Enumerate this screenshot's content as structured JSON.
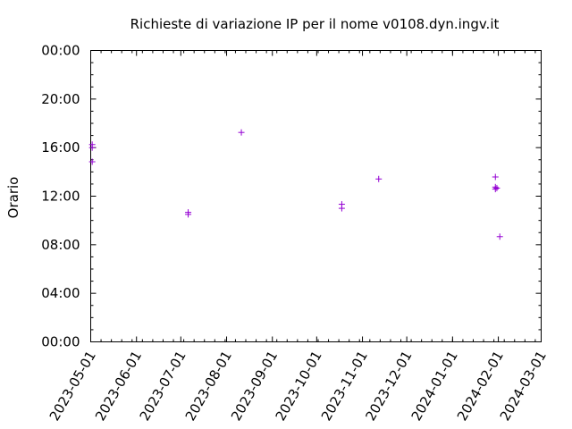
{
  "chart_data": {
    "type": "scatter",
    "title": "Richieste di variazione IP per il nome v0108.dyn.ingv.it",
    "xlabel": "",
    "ylabel": "Orario",
    "x_axis": {
      "type": "date",
      "range": [
        "2023-05-01",
        "2024-03-01"
      ],
      "ticks": [
        "2023-05-01",
        "2023-06-01",
        "2023-07-01",
        "2023-08-01",
        "2023-09-01",
        "2023-10-01",
        "2023-11-01",
        "2023-12-01",
        "2024-01-01",
        "2024-02-01",
        "2024-03-01"
      ]
    },
    "y_axis": {
      "type": "time",
      "range": [
        "00:00",
        "24:00"
      ],
      "ticks": [
        "00:00",
        "04:00",
        "08:00",
        "12:00",
        "16:00",
        "20:00",
        "00:00"
      ]
    },
    "grid": false,
    "marker": "+",
    "marker_color": "#9400d3",
    "points": [
      {
        "x": "2023-05-02",
        "y": "16:15"
      },
      {
        "x": "2023-05-02",
        "y": "16:00"
      },
      {
        "x": "2023-05-02",
        "y": "14:50"
      },
      {
        "x": "2023-07-06",
        "y": "10:40"
      },
      {
        "x": "2023-07-06",
        "y": "10:30"
      },
      {
        "x": "2023-08-11",
        "y": "17:15"
      },
      {
        "x": "2023-10-18",
        "y": "11:20"
      },
      {
        "x": "2023-10-18",
        "y": "11:00"
      },
      {
        "x": "2023-11-12",
        "y": "13:25"
      },
      {
        "x": "2024-01-30",
        "y": "13:35"
      },
      {
        "x": "2024-01-30",
        "y": "12:45"
      },
      {
        "x": "2024-01-30",
        "y": "12:35"
      },
      {
        "x": "2024-01-31",
        "y": "12:40"
      },
      {
        "x": "2024-02-02",
        "y": "08:40"
      }
    ]
  }
}
